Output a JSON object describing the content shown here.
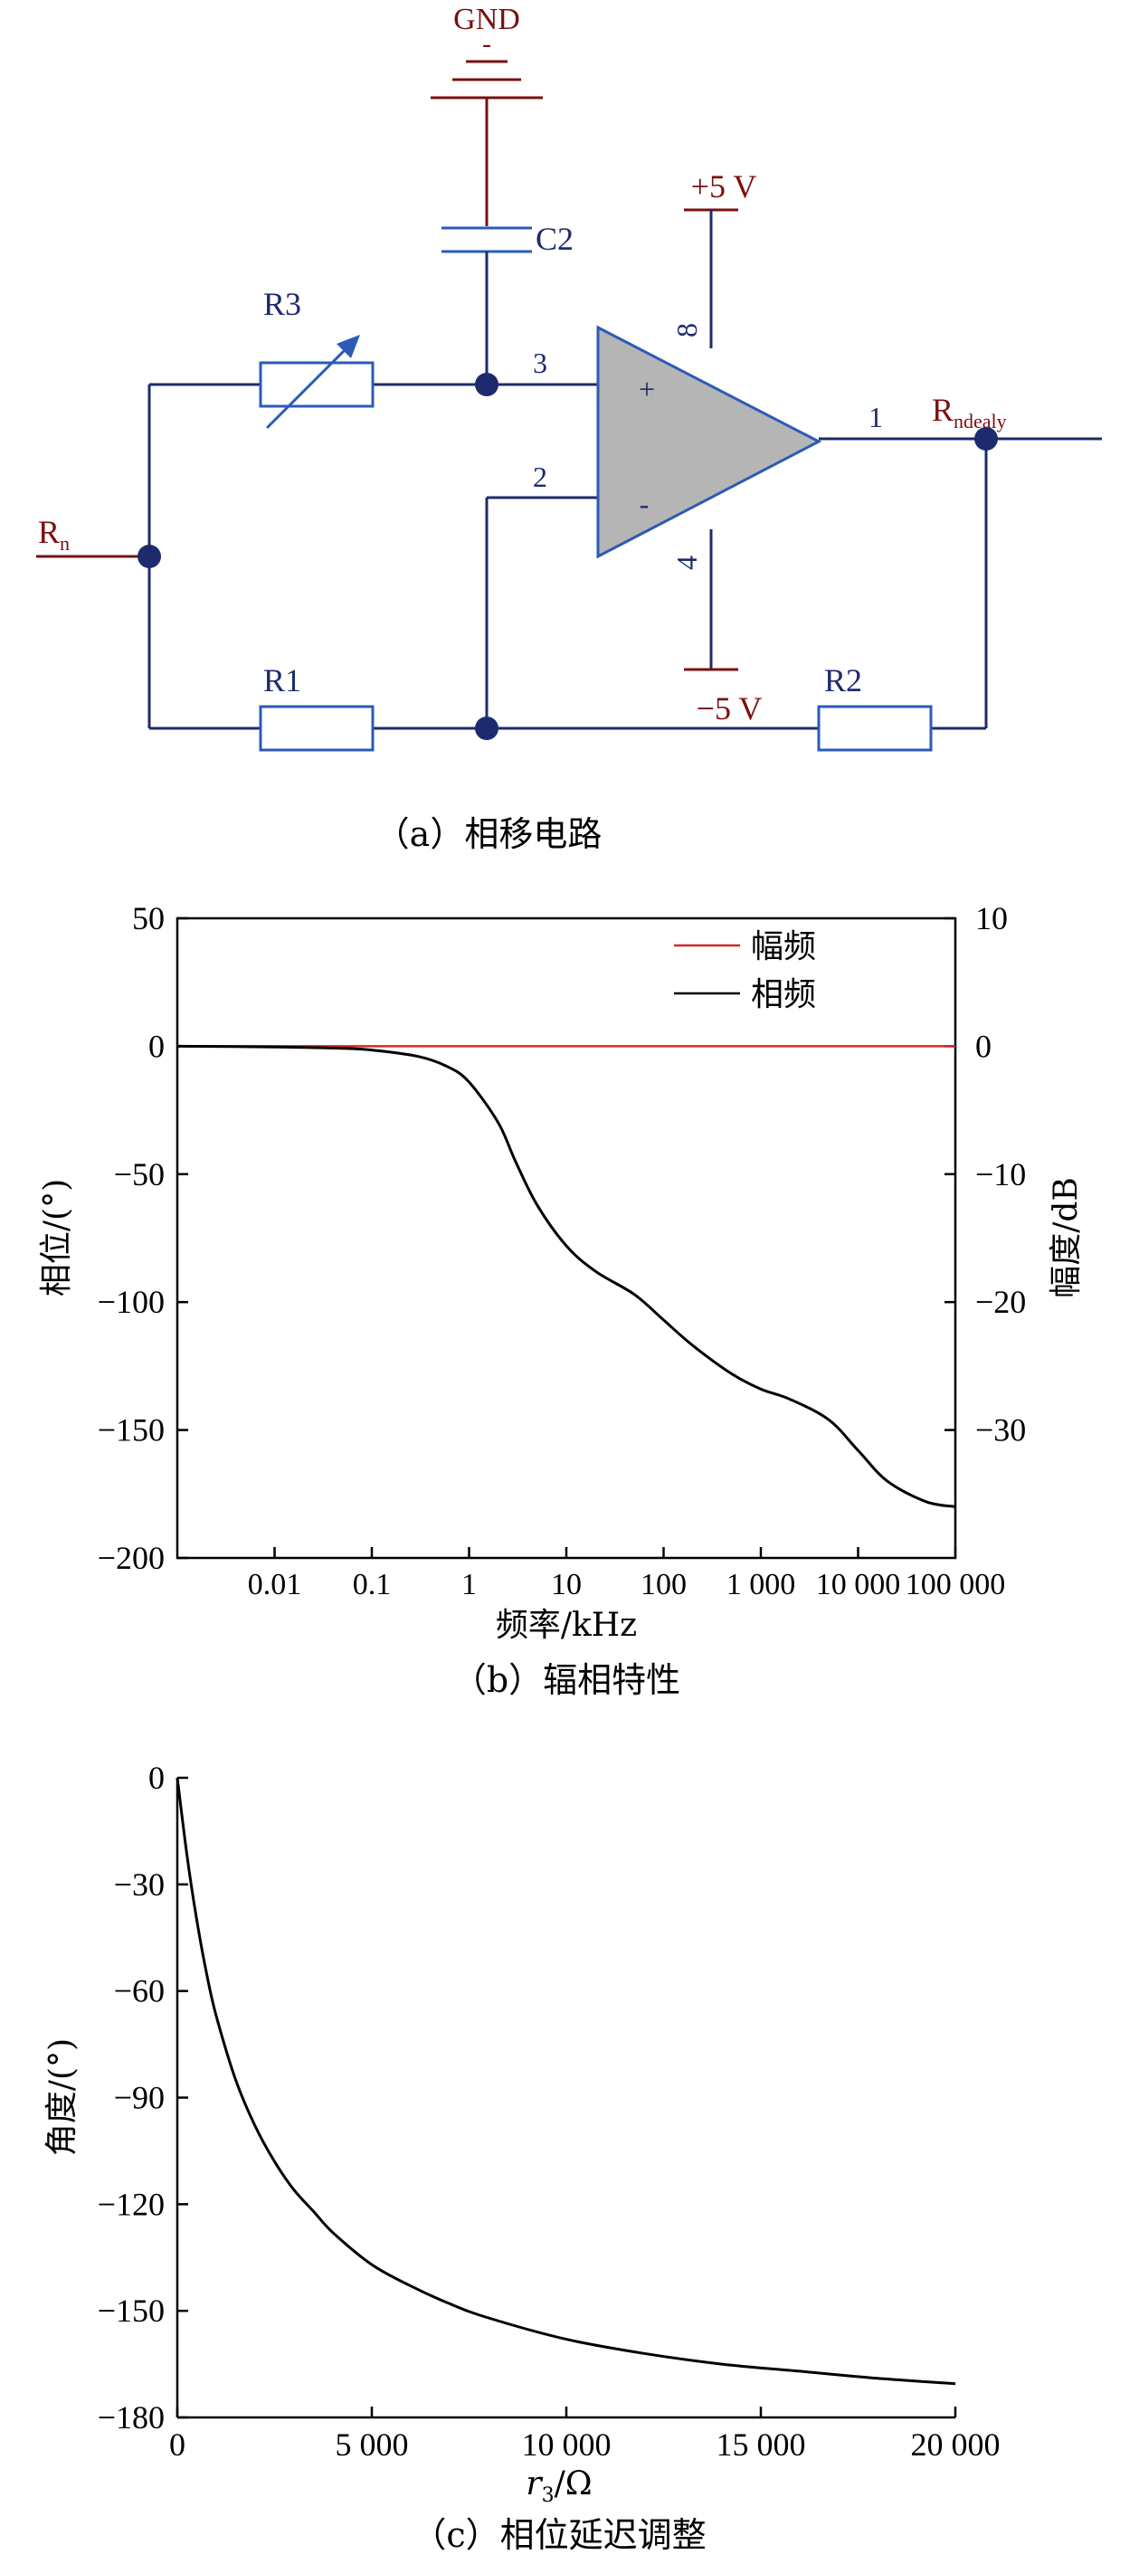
{
  "circuit": {
    "gnd_label": "GND",
    "gnd_mark": "-",
    "c2_label": "C2",
    "vplus_label": "+5 V",
    "vminus_label": "−5 V",
    "r3_label": "R3",
    "r1_label": "R1",
    "r2_label": "R2",
    "rn_main": "R",
    "rn_sub": "n",
    "out_main": "R",
    "out_sub": "ndealy",
    "pin3": "3",
    "pin2": "2",
    "pin1": "1",
    "pin8": "8",
    "pin4": "4",
    "plus_sign": "+",
    "minus_sign": "-",
    "caption": "（a）相移电路"
  },
  "chart_b": {
    "caption": "（b）辐相特性",
    "xlabel": "频率/kHz",
    "ylabel_left": "相位/(°)",
    "ylabel_right": "幅度/dB",
    "legend_amp": "幅频",
    "legend_phase": "相频",
    "amp_color": "#d62728",
    "phase_color": "#000000"
  },
  "chart_c": {
    "caption": "（c）相位延迟调整",
    "xlabel_main": "r",
    "xlabel_sub": "3",
    "xlabel_unit": "/Ω",
    "ylabel": "角度/(°)",
    "line_color": "#000000"
  },
  "chart_data": [
    {
      "type": "line",
      "x_scale": "log",
      "xticks": [
        "0.01",
        "0.1",
        "1",
        "10",
        "100",
        "1 000",
        "10 000",
        "100 000"
      ],
      "xtick_values": [
        0.01,
        0.1,
        1,
        10,
        100,
        1000,
        10000,
        100000
      ],
      "xlim": [
        0.001,
        100000
      ],
      "yticks_left": [
        "50",
        "0",
        "−50",
        "−100",
        "−150",
        "−200"
      ],
      "ytick_left_values": [
        50,
        0,
        -50,
        -100,
        -150,
        -200
      ],
      "ylim_left": [
        -200,
        50
      ],
      "yticks_right": [
        "10",
        "0",
        "−10",
        "−20",
        "−30"
      ],
      "ytick_right_values": [
        10,
        0,
        -10,
        -20,
        -30
      ],
      "ylim_right": [
        -40,
        10
      ],
      "legend_position": "top-right",
      "series": [
        {
          "name": "幅频",
          "axis": "right",
          "x": [
            0.001,
            100000
          ],
          "y": [
            0,
            0
          ]
        },
        {
          "name": "相频",
          "axis": "left",
          "x": [
            0.001,
            0.01,
            0.05,
            0.1,
            0.3,
            0.6,
            1,
            2,
            3,
            5,
            10,
            20,
            50,
            100,
            200,
            500,
            1000,
            2000,
            5000,
            10000,
            20000,
            50000,
            100000
          ],
          "y": [
            0,
            -0.3,
            -0.8,
            -1.5,
            -4,
            -8,
            -14,
            -30,
            -45,
            -62,
            -78,
            -88,
            -97,
            -107,
            -117,
            -128,
            -134,
            -138,
            -146,
            -158,
            -170,
            -178,
            -180
          ]
        }
      ]
    },
    {
      "type": "line",
      "xticks": [
        "0",
        "5 000",
        "10 000",
        "15 000",
        "20 000"
      ],
      "xtick_values": [
        0,
        5000,
        10000,
        15000,
        20000
      ],
      "xlim": [
        0,
        20000
      ],
      "yticks": [
        "0",
        "−30",
        "−60",
        "−90",
        "−120",
        "−150",
        "−180"
      ],
      "ytick_values": [
        0,
        -30,
        -60,
        -90,
        -120,
        -150,
        -180
      ],
      "ylim": [
        -180,
        0
      ],
      "series": [
        {
          "x": [
            0,
            250,
            500,
            750,
            1000,
            1500,
            2000,
            2500,
            3000,
            3500,
            4000,
            5000,
            6000,
            7000,
            8000,
            10000,
            12000,
            14000,
            16000,
            18000,
            20000
          ],
          "y": [
            0,
            -22,
            -40,
            -55,
            -67,
            -85,
            -98,
            -108,
            -116,
            -122,
            -128,
            -137,
            -143,
            -148,
            -152,
            -158,
            -162,
            -165,
            -167,
            -169,
            -170.5
          ]
        }
      ]
    }
  ]
}
